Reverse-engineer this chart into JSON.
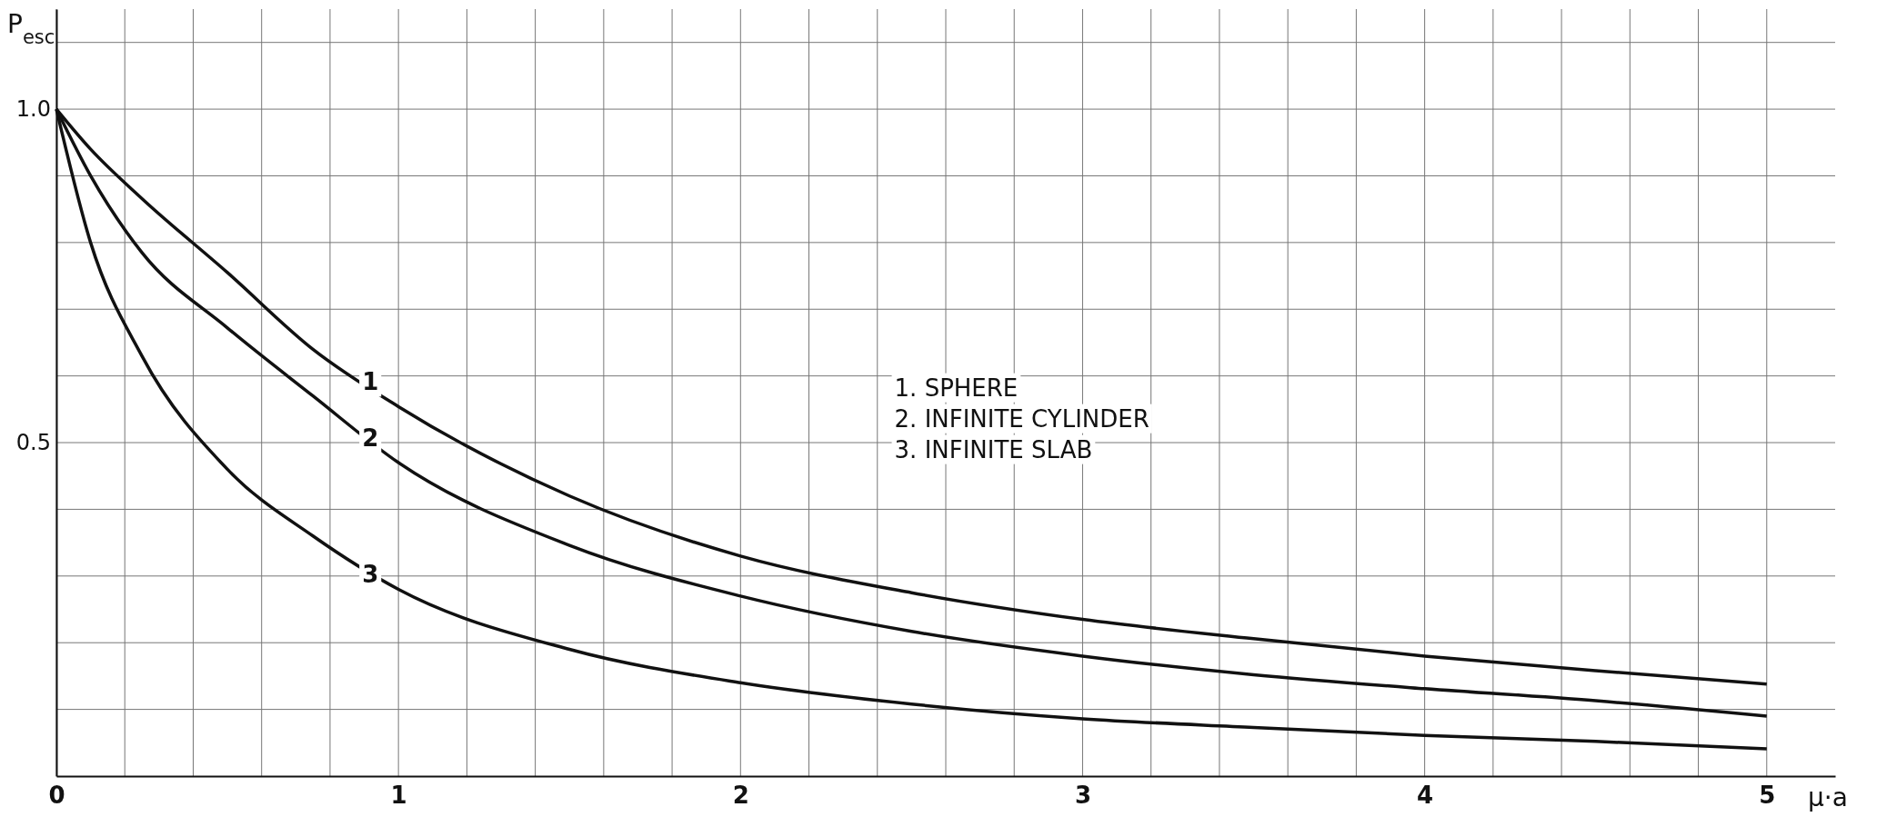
{
  "chart_data": {
    "type": "line",
    "ylabel": "P$_{esc}$",
    "xlabel": "μ·a",
    "xlim": [
      0,
      5.2
    ],
    "ylim": [
      0,
      1.15
    ],
    "xticks": [
      0,
      {
        "value": 0.2,
        "label": null
      },
      {
        "value": 0.4,
        "label": null
      },
      {
        "value": 0.6,
        "label": null
      },
      {
        "value": 0.8,
        "label": null
      },
      1,
      {
        "value": 1.2,
        "label": null
      },
      {
        "value": 1.4,
        "label": null
      },
      {
        "value": 1.6,
        "label": null
      },
      {
        "value": 1.8,
        "label": null
      },
      2,
      {
        "value": 2.2,
        "label": null
      },
      {
        "value": 2.4,
        "label": null
      },
      {
        "value": 2.6,
        "label": null
      },
      {
        "value": 2.8,
        "label": null
      },
      3,
      {
        "value": 3.2,
        "label": null
      },
      {
        "value": 3.4,
        "label": null
      },
      {
        "value": 3.6,
        "label": null
      },
      {
        "value": 3.8,
        "label": null
      },
      4,
      {
        "value": 4.2,
        "label": null
      },
      {
        "value": 4.4,
        "label": null
      },
      {
        "value": 4.6,
        "label": null
      },
      {
        "value": 4.8,
        "label": null
      },
      5
    ],
    "yticks": [
      {
        "value": 0.1,
        "label": null
      },
      {
        "value": 0.2,
        "label": null
      },
      {
        "value": 0.3,
        "label": null
      },
      {
        "value": 0.4,
        "label": null
      },
      {
        "value": 0.5,
        "label": "0.5"
      },
      {
        "value": 0.6,
        "label": null
      },
      {
        "value": 0.7,
        "label": null
      },
      {
        "value": 0.8,
        "label": null
      },
      {
        "value": 0.9,
        "label": null
      },
      {
        "value": 1.0,
        "label": "1.0"
      },
      {
        "value": 1.1,
        "label": null
      }
    ],
    "grid": true,
    "marker": "none",
    "line_style": "solid",
    "legend": false,
    "x": [
      0,
      0.1,
      0.25,
      0.5,
      0.75,
      1,
      1.5,
      2,
      2.5,
      3,
      3.5,
      4,
      4.5,
      5
    ],
    "series": [
      {
        "name": "1",
        "color": "#111111",
        "values": [
          1.0,
          0.94,
          0.866,
          0.755,
          0.64,
          0.554,
          0.42,
          0.33,
          0.275,
          0.235,
          0.206,
          0.18,
          0.158,
          0.138
        ]
      },
      {
        "name": "2",
        "color": "#111111",
        "values": [
          1.0,
          0.9,
          0.785,
          0.672,
          0.57,
          0.47,
          0.346,
          0.27,
          0.217,
          0.18,
          0.152,
          0.131,
          0.113,
          0.09
        ]
      },
      {
        "name": "3",
        "color": "#111111",
        "values": [
          1.0,
          0.8,
          0.63,
          0.46,
          0.36,
          0.28,
          0.19,
          0.14,
          0.108,
          0.086,
          0.073,
          0.061,
          0.052,
          0.041
        ]
      }
    ],
    "annotations": [
      "1. SPHERE",
      "2. INFINITE CYLINDER",
      "3. INFINITE SLAB"
    ]
  }
}
